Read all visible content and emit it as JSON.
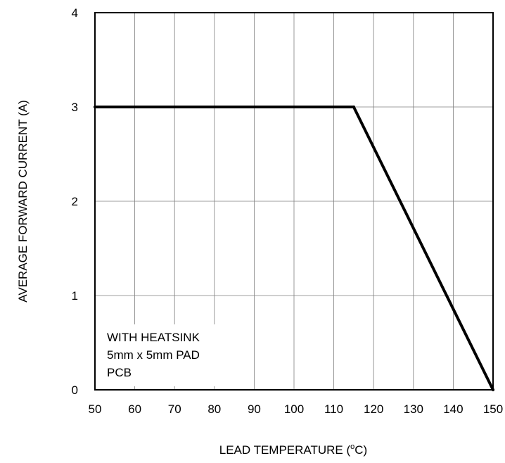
{
  "chart_data": {
    "type": "line",
    "title": "",
    "xlabel": "LEAD TEMPERATURE (",
    "xlabel_superscript": "o",
    "xlabel_suffix": "C)",
    "ylabel": "AVERAGE FORWARD CURRENT (A)",
    "xlim": [
      50,
      150
    ],
    "ylim": [
      0,
      4
    ],
    "x_ticks": [
      50,
      60,
      70,
      80,
      90,
      100,
      110,
      120,
      130,
      140,
      150
    ],
    "y_ticks": [
      0,
      1,
      2,
      3,
      4
    ],
    "grid": true,
    "series": [
      {
        "x": [
          50,
          115,
          150
        ],
        "y": [
          3,
          3,
          0
        ],
        "color": "#000000"
      }
    ],
    "annotations": [
      "WITH HEATSINK",
      "5mm x 5mm PAD",
      "PCB"
    ],
    "colors": {
      "line": "#000000",
      "grid": "#7f7f7f",
      "frame": "#000000",
      "text": "#000000"
    }
  }
}
